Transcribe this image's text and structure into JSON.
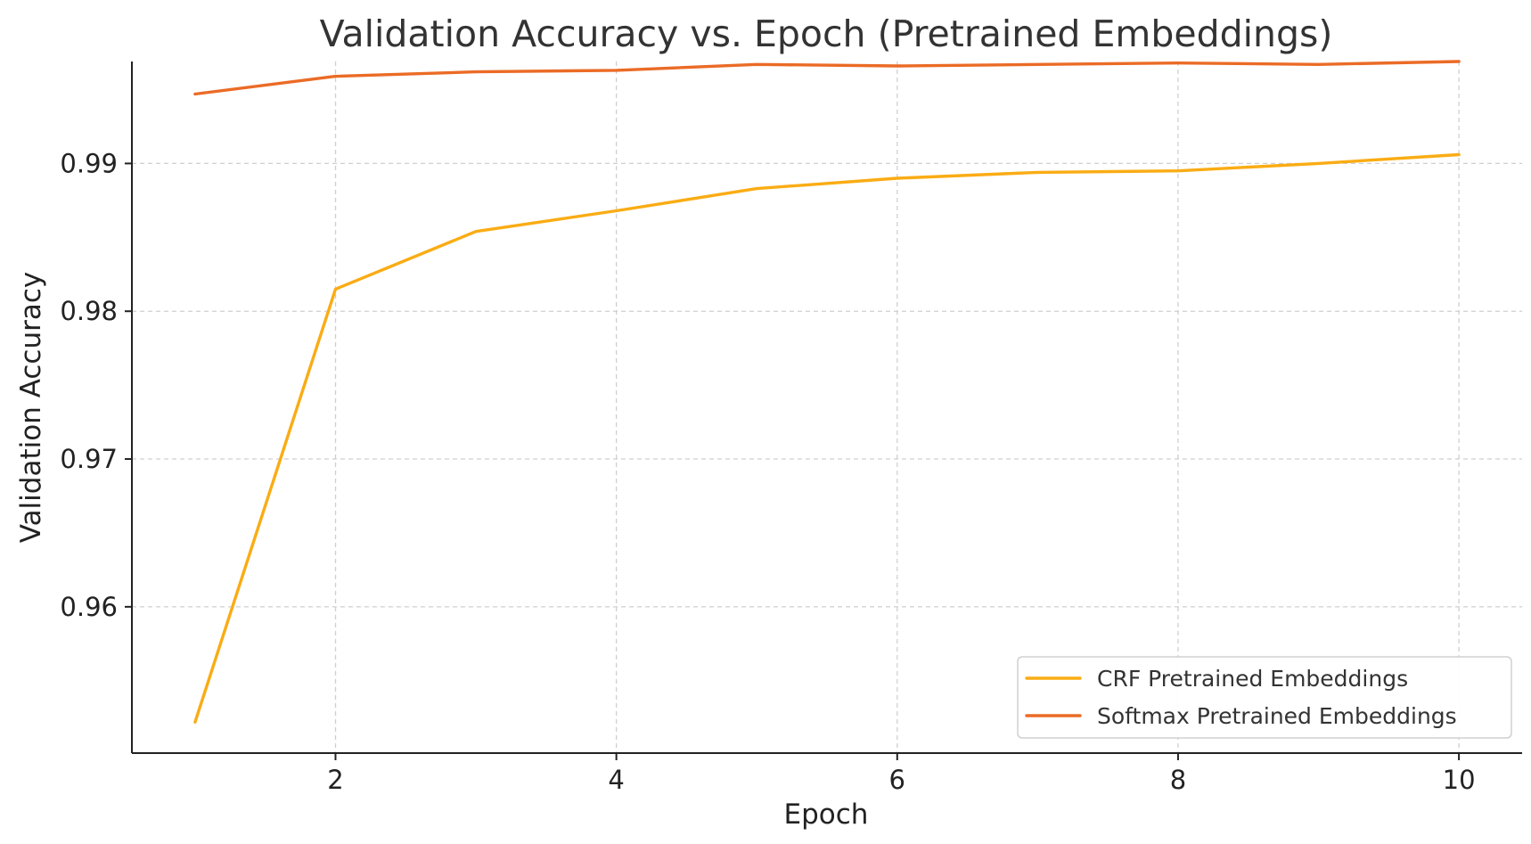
{
  "chart_data": {
    "type": "line",
    "title": "Validation Accuracy vs. Epoch (Pretrained Embeddings)",
    "xlabel": "Epoch",
    "ylabel": "Validation Accuracy",
    "xlim": [
      0.55,
      10.45
    ],
    "ylim": [
      0.9501,
      0.9969
    ],
    "xticks": [
      2,
      4,
      6,
      8,
      10
    ],
    "xtick_labels": [
      "2",
      "4",
      "6",
      "8",
      "10"
    ],
    "yticks": [
      0.96,
      0.97,
      0.98,
      0.99
    ],
    "ytick_labels": [
      "0.96",
      "0.97",
      "0.98",
      "0.99"
    ],
    "grid": true,
    "legend_position": "bottom-right",
    "x": [
      1,
      2,
      3,
      4,
      5,
      6,
      7,
      8,
      9,
      10
    ],
    "series": [
      {
        "name": "CRF Pretrained Embeddings",
        "color": "#FAAC14",
        "values": [
          0.9522,
          0.9815,
          0.9854,
          0.9868,
          0.9883,
          0.989,
          0.9894,
          0.9895,
          0.99,
          0.9906
        ]
      },
      {
        "name": "Softmax Pretrained Embeddings",
        "color": "#EB6B26",
        "values": [
          0.9947,
          0.9959,
          0.9962,
          0.9963,
          0.9967,
          0.9966,
          0.9967,
          0.9968,
          0.9967,
          0.9969
        ]
      }
    ]
  }
}
